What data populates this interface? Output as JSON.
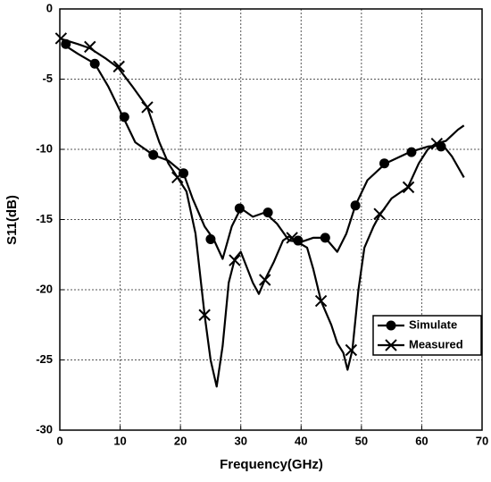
{
  "chart_data": {
    "type": "line",
    "xlabel": "Frequency(GHz)",
    "ylabel": "S11(dB)",
    "xlim": [
      0,
      70
    ],
    "xticks": [
      0,
      10,
      20,
      30,
      40,
      50,
      60,
      70
    ],
    "ylim": [
      -30,
      0
    ],
    "yticks": [
      -30,
      -25,
      -20,
      -15,
      -10,
      -5,
      0
    ],
    "grid": true,
    "legend": "lower right",
    "series": [
      {
        "name": "Simulate",
        "color": "#000000",
        "marker": "circle",
        "x": [
          0.5,
          3,
          5.8,
          8,
          10.5,
          12.5,
          15.5,
          18,
          20.5,
          22,
          24,
          25.5,
          27,
          28.5,
          30,
          32,
          34,
          36,
          38,
          40,
          42,
          44,
          46,
          47.5,
          49,
          51,
          54,
          58,
          61,
          63.5,
          65,
          67
        ],
        "values": [
          -2.5,
          -3.2,
          -3.9,
          -5.5,
          -7.7,
          -9.5,
          -10.4,
          -10.8,
          -11.7,
          -13.5,
          -15.5,
          -16.4,
          -17.8,
          -15.5,
          -14.2,
          -14.8,
          -14.5,
          -15.3,
          -16.5,
          -16.6,
          -16.3,
          -16.3,
          -17.3,
          -16,
          -14,
          -12.2,
          -11,
          -10.2,
          -9.8,
          -9.7,
          -10.5,
          -12
        ],
        "marker_x": [
          1,
          5.8,
          10.7,
          15.5,
          20.5,
          25,
          29.8,
          34.5,
          39.5,
          44,
          49,
          53.8,
          58.3,
          63.2
        ],
        "marker_values": [
          -2.5,
          -3.9,
          -7.7,
          -10.4,
          -11.7,
          -16.4,
          -14.2,
          -14.5,
          -16.5,
          -16.3,
          -14,
          -11,
          -10.2,
          -9.8
        ]
      },
      {
        "name": "Measured",
        "color": "#000000",
        "marker": "x",
        "x": [
          0,
          3,
          5,
          7.5,
          9.7,
          12,
          14.5,
          16.5,
          18,
          19.5,
          21,
          22.5,
          24,
          25,
          26,
          27,
          28,
          29,
          30,
          32,
          33,
          34,
          35.5,
          37,
          38,
          39,
          41,
          42,
          43.3,
          45,
          46,
          47,
          47.7,
          48.5,
          49.5,
          50.5,
          52,
          53,
          55,
          57.7,
          59.5,
          61,
          62.3,
          64,
          65,
          66,
          67
        ],
        "values": [
          -2.1,
          -2.5,
          -2.8,
          -3.5,
          -4.2,
          -5.5,
          -7,
          -9.5,
          -11,
          -12,
          -13,
          -16,
          -21.8,
          -25,
          -26.9,
          -24,
          -19.5,
          -17.8,
          -17.3,
          -19.5,
          -20.3,
          -19.3,
          -18,
          -16.5,
          -16.2,
          -16.5,
          -17,
          -18.5,
          -20.8,
          -22.5,
          -23.8,
          -24.5,
          -25.7,
          -24.3,
          -20,
          -17,
          -15.5,
          -14.7,
          -13.5,
          -12.7,
          -11,
          -10,
          -9.6,
          -9.4,
          -9,
          -8.6,
          -8.3
        ],
        "marker_x": [
          0.2,
          5,
          9.8,
          14.5,
          19.5,
          24,
          29,
          34,
          38.5,
          43.3,
          48.3,
          53,
          57.8,
          62.5
        ],
        "marker_values": [
          -2.1,
          -2.7,
          -4.1,
          -7,
          -12,
          -21.8,
          -17.9,
          -19.3,
          -16.3,
          -20.8,
          -24.3,
          -14.6,
          -12.7,
          -9.6
        ]
      }
    ]
  }
}
